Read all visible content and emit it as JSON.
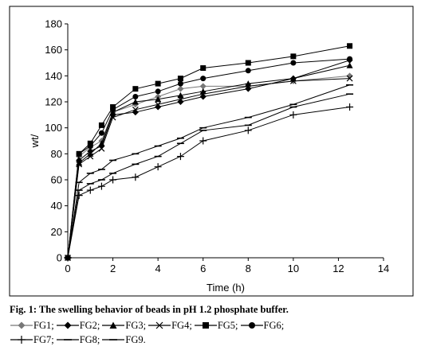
{
  "chart_data": {
    "type": "line",
    "title": "",
    "xlabel": "Time (h)",
    "ylabel": "wt/",
    "xlim": [
      0,
      14
    ],
    "ylim": [
      0,
      180
    ],
    "xticks": [
      "0",
      "2",
      "4",
      "6",
      "8",
      "10",
      "12",
      "14"
    ],
    "yticks": [
      "0",
      "20",
      "40",
      "60",
      "80",
      "100",
      "120",
      "140",
      "160",
      "180"
    ],
    "grid": false,
    "legend_position": "below",
    "series": [
      {
        "name": "FG1",
        "marker": "diamond",
        "color": "#777777",
        "x": [
          0,
          0.5,
          1,
          1.5,
          2,
          3,
          4,
          5,
          6,
          8,
          10,
          12.5
        ],
        "y": [
          0,
          78,
          85,
          90,
          112,
          118,
          124,
          130,
          132,
          132,
          136,
          140
        ]
      },
      {
        "name": "FG2",
        "marker": "diamond",
        "color": "#000000",
        "x": [
          0,
          0.5,
          1,
          1.5,
          2,
          3,
          4,
          5,
          6,
          8,
          10,
          12.5
        ],
        "y": [
          0,
          75,
          82,
          86,
          110,
          112,
          116,
          120,
          124,
          130,
          138,
          152
        ]
      },
      {
        "name": "FG3",
        "marker": "triangle",
        "color": "#000000",
        "x": [
          0,
          0.5,
          1,
          1.5,
          2,
          3,
          4,
          5,
          6,
          8,
          10,
          12.5
        ],
        "y": [
          0,
          73,
          80,
          88,
          112,
          120,
          122,
          125,
          128,
          134,
          138,
          148
        ]
      },
      {
        "name": "FG4",
        "marker": "x",
        "color": "#000000",
        "x": [
          0,
          0.5,
          1,
          1.5,
          2,
          3,
          4,
          5,
          6,
          8,
          10,
          12.5
        ],
        "y": [
          0,
          72,
          78,
          84,
          108,
          114,
          118,
          122,
          126,
          132,
          136,
          138
        ]
      },
      {
        "name": "FG5",
        "marker": "square",
        "color": "#000000",
        "x": [
          0,
          0.5,
          1,
          1.5,
          2,
          3,
          4,
          5,
          6,
          8,
          10,
          12.5
        ],
        "y": [
          0,
          80,
          88,
          102,
          116,
          130,
          134,
          138,
          146,
          150,
          155,
          163
        ]
      },
      {
        "name": "FG6",
        "marker": "circle",
        "color": "#000000",
        "x": [
          0,
          0.5,
          1,
          1.5,
          2,
          3,
          4,
          5,
          6,
          8,
          10,
          12.5
        ],
        "y": [
          0,
          80,
          86,
          96,
          114,
          124,
          128,
          134,
          138,
          144,
          150,
          153
        ]
      },
      {
        "name": "FG7",
        "marker": "plus",
        "color": "#000000",
        "x": [
          0,
          0.5,
          1,
          1.5,
          2,
          3,
          4,
          5,
          6,
          8,
          10,
          12.5
        ],
        "y": [
          0,
          48,
          52,
          55,
          60,
          62,
          70,
          78,
          90,
          98,
          110,
          116
        ]
      },
      {
        "name": "FG8",
        "marker": "dash",
        "color": "#000000",
        "x": [
          0,
          0.5,
          1,
          1.5,
          2,
          3,
          4,
          5,
          6,
          8,
          10,
          12.5
        ],
        "y": [
          0,
          52,
          57,
          60,
          65,
          72,
          78,
          88,
          98,
          102,
          116,
          126
        ]
      },
      {
        "name": "FG9",
        "marker": "dash",
        "color": "#000000",
        "x": [
          0,
          0.5,
          1,
          1.5,
          2,
          3,
          4,
          5,
          6,
          8,
          10,
          12.5
        ],
        "y": [
          0,
          58,
          65,
          68,
          75,
          80,
          86,
          92,
          100,
          108,
          118,
          133
        ]
      }
    ]
  },
  "figure": {
    "caption": "Fig. 1: The swelling behavior of beads in pH 1.2 phosphate buffer.",
    "legend_rows": [
      [
        {
          "series": 0,
          "label": "FG1;"
        },
        {
          "series": 1,
          "label": "FG2;"
        },
        {
          "series": 2,
          "label": "FG3;"
        },
        {
          "series": 3,
          "label": "FG4;"
        },
        {
          "series": 4,
          "label": "FG5;"
        },
        {
          "series": 5,
          "label": "FG6;"
        }
      ],
      [
        {
          "series": 6,
          "label": "FG7;"
        },
        {
          "series": 7,
          "label": "FG8;"
        },
        {
          "series": 8,
          "label": "FG9."
        }
      ]
    ]
  }
}
